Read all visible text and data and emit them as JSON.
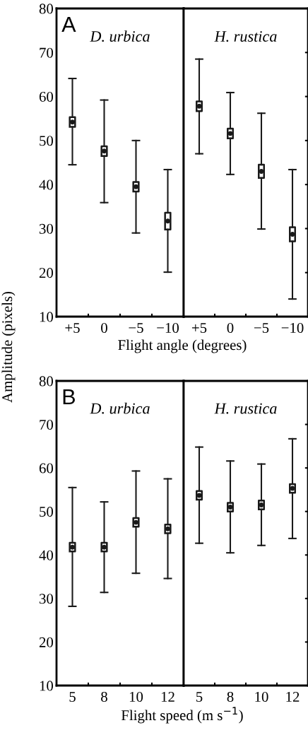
{
  "chart_data": [
    {
      "type": "box",
      "title": "D. urbica",
      "annotations": [
        "A"
      ],
      "ylabel": "Amplitude (pixels)",
      "xlabel": "Flight angle (degrees)",
      "categories": [
        "+5",
        "0",
        "−5",
        "−10"
      ],
      "ylim": [
        10,
        80
      ],
      "yticks": [
        10,
        20,
        30,
        40,
        50,
        60,
        70,
        80
      ],
      "boxes": [
        {
          "low": 44.5,
          "q1": 53.1,
          "median": 54.2,
          "q3": 55.3,
          "high": 64.1
        },
        {
          "low": 35.9,
          "q1": 46.5,
          "median": 47.6,
          "q3": 48.7,
          "high": 59.2
        },
        {
          "low": 29.0,
          "q1": 38.4,
          "median": 39.5,
          "q3": 40.6,
          "high": 50.0
        },
        {
          "low": 20.1,
          "q1": 29.8,
          "median": 31.7,
          "q3": 33.6,
          "high": 43.4
        }
      ]
    },
    {
      "type": "box",
      "title": "H. rustica",
      "categories": [
        "+5",
        "0",
        "−5",
        "−10"
      ],
      "ylim": [
        10,
        80
      ],
      "yticks": [
        10,
        20,
        30,
        40,
        50,
        60,
        70,
        80
      ],
      "tick_labels": "x",
      "boxes": [
        {
          "low": 47.0,
          "q1": 56.7,
          "median": 57.8,
          "q3": 58.9,
          "high": 68.5
        },
        {
          "low": 42.3,
          "q1": 50.5,
          "median": 51.6,
          "q3": 52.7,
          "high": 60.9
        },
        {
          "low": 29.9,
          "q1": 41.5,
          "median": 43.0,
          "q3": 44.5,
          "high": 56.2
        },
        {
          "low": 14.0,
          "q1": 27.1,
          "median": 28.7,
          "q3": 30.3,
          "high": 43.4
        }
      ]
    },
    {
      "type": "box",
      "title": "D. urbica",
      "annotations": [
        "B"
      ],
      "xlabel": "Flight speed (m s$^{−1}$)",
      "categories": [
        "5",
        "8",
        "10",
        "12"
      ],
      "ylim": [
        10,
        80
      ],
      "yticks": [
        10,
        20,
        30,
        40,
        50,
        60,
        70,
        80
      ],
      "boxes": [
        {
          "low": 28.2,
          "q1": 40.8,
          "median": 41.8,
          "q3": 42.8,
          "high": 55.5
        },
        {
          "low": 31.4,
          "q1": 40.8,
          "median": 41.8,
          "q3": 42.8,
          "high": 52.2
        },
        {
          "low": 35.8,
          "q1": 46.5,
          "median": 47.5,
          "q3": 48.5,
          "high": 59.3
        },
        {
          "low": 34.6,
          "q1": 45.0,
          "median": 46.0,
          "q3": 47.0,
          "high": 57.5
        }
      ]
    },
    {
      "type": "box",
      "title": "H. rustica",
      "categories": [
        "5",
        "8",
        "10",
        "12"
      ],
      "ylim": [
        10,
        80
      ],
      "yticks": [
        10,
        20,
        30,
        40,
        50,
        60,
        70,
        80
      ],
      "tick_labels": "x",
      "boxes": [
        {
          "low": 42.7,
          "q1": 52.7,
          "median": 53.7,
          "q3": 54.7,
          "high": 64.8
        },
        {
          "low": 40.5,
          "q1": 50.0,
          "median": 51.0,
          "q3": 52.0,
          "high": 61.6
        },
        {
          "low": 42.2,
          "q1": 50.5,
          "median": 51.5,
          "q3": 52.5,
          "high": 60.9
        },
        {
          "low": 43.8,
          "q1": 54.3,
          "median": 55.3,
          "q3": 56.3,
          "high": 66.7
        }
      ]
    }
  ]
}
